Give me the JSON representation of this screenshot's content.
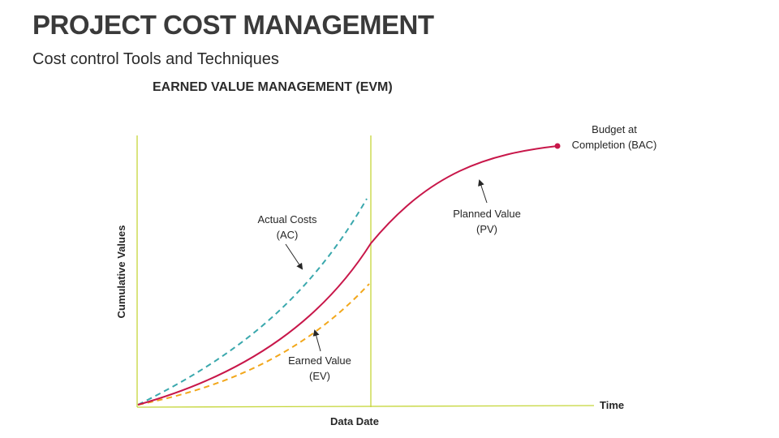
{
  "header": {
    "title": "PROJECT COST MANAGEMENT",
    "subtitle": "Cost control Tools and Techniques"
  },
  "diagram": {
    "title": "EARNED VALUE MANAGEMENT (EVM)",
    "y_axis_label": "Cumulative Values",
    "x_axis_label": "Time",
    "data_date_label": "Data Date",
    "curves": {
      "ac": {
        "line1": "Actual Costs",
        "line2": "(AC)",
        "color": "#3aa8ad",
        "style": "dashed"
      },
      "pv": {
        "line1": "Planned Value",
        "line2": "(PV)",
        "color": "#c8174a",
        "style": "solid"
      },
      "ev": {
        "line1": "Earned Value",
        "line2": "(EV)",
        "color": "#f2a71b",
        "style": "dashed"
      }
    },
    "bac": {
      "line1": "Budget at",
      "line2": "Completion (BAC)",
      "color": "#c8174a"
    },
    "axis_color": "#c5d63a",
    "arrow_color": "#262626"
  }
}
